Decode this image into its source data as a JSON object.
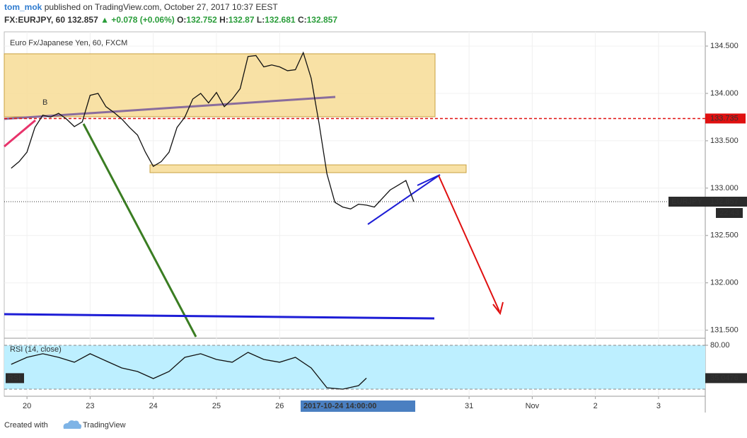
{
  "header": {
    "author": "tom_mok",
    "published": "published on TradingView.com, October 27, 2017 10:37 EEST",
    "symbol": "FX:EURJPY, 60",
    "change": "▲ +0.078 (+0.06%)",
    "ohlc": [
      {
        "label": "O:",
        "value": 132.752
      },
      {
        "label": "H:",
        "value": 132.87
      },
      {
        "label": "L:",
        "value": 132.681
      },
      {
        "label": "C:",
        "value": 132.857
      }
    ]
  },
  "chart_data": [
    {
      "type": "line",
      "title": "Euro Fx/Japanese Yen, 60, FXCM",
      "x": [
        -0.25,
        -0.125,
        0,
        0.125,
        0.25,
        0.375,
        0.5,
        0.625,
        0.75,
        0.875,
        1,
        1.125,
        1.25,
        1.375,
        1.5,
        1.625,
        1.75,
        1.875,
        2,
        2.125,
        2.25,
        2.375,
        2.5,
        2.625,
        2.75,
        2.875,
        3,
        3.125,
        3.25,
        3.375,
        3.5,
        3.625,
        3.75,
        3.875,
        4,
        4.125,
        4.25,
        4.375,
        4.5,
        4.625,
        4.75,
        4.875,
        5,
        5.125,
        5.25,
        5.375,
        5.5,
        5.625,
        5.75,
        5.875,
        6,
        6.125
      ],
      "series": [
        {
          "name": "EURJPY",
          "color": "#111111",
          "values": [
            133.21,
            133.28,
            133.38,
            133.64,
            133.77,
            133.75,
            133.79,
            133.73,
            133.65,
            133.7,
            133.98,
            134.0,
            133.86,
            133.8,
            133.73,
            133.64,
            133.56,
            133.38,
            133.23,
            133.28,
            133.38,
            133.64,
            133.75,
            133.94,
            134.0,
            133.9,
            134.01,
            133.86,
            133.94,
            134.05,
            134.39,
            134.4,
            134.28,
            134.3,
            134.28,
            134.24,
            134.25,
            134.43,
            134.16,
            133.68,
            133.15,
            132.85,
            132.8,
            132.78,
            132.83,
            132.82,
            132.8,
            132.89,
            132.98,
            133.03,
            133.08,
            132.857
          ]
        }
      ],
      "hline": {
        "value": 133.735,
        "color": "#e01010"
      },
      "countdown": "22:43",
      "annotation": "B",
      "crosshair_label": "2017-10-24 14:00:00",
      "xlim": [
        -0.36,
        10.74
      ],
      "ylim": [
        131.43,
        134.65
      ],
      "xticks": [
        {
          "value": 0,
          "label": "20"
        },
        {
          "value": 1,
          "label": "23"
        },
        {
          "value": 2,
          "label": "24"
        },
        {
          "value": 3,
          "label": "25"
        },
        {
          "value": 4,
          "label": "26"
        },
        {
          "value": 7,
          "label": "31"
        },
        {
          "value": 8,
          "label": "Nov"
        },
        {
          "value": 9,
          "label": "2"
        },
        {
          "value": 10,
          "label": "3"
        }
      ],
      "yticks": [
        {
          "value": 131.5,
          "label": "131.500"
        },
        {
          "value": 132,
          "label": "132.000"
        },
        {
          "value": 132.5,
          "label": "132.500"
        },
        {
          "value": 133,
          "label": "133.000"
        },
        {
          "value": 133.5,
          "label": "133.500"
        },
        {
          "value": 134,
          "label": "134.000"
        },
        {
          "value": 134.5,
          "label": "134.500"
        }
      ],
      "grid": true
    },
    {
      "type": "line",
      "title": "RSI (14, close)",
      "x": [
        -0.25,
        0,
        0.25,
        0.5,
        0.75,
        1,
        1.25,
        1.5,
        1.75,
        2,
        2.25,
        2.5,
        2.75,
        3,
        3.25,
        3.5,
        3.75,
        4,
        4.25,
        4.5,
        4.75,
        5,
        5.25,
        5.375
      ],
      "series": [
        {
          "name": "RSI",
          "color": "#111111",
          "values": [
            53.9,
            63.5,
            68.4,
            63.5,
            56.8,
            68.4,
            58.7,
            49,
            44.2,
            34.5,
            44.2,
            63.5,
            68.4,
            60.6,
            56.8,
            70.3,
            60.6,
            56.8,
            63.5,
            49,
            21.9,
            20,
            24.8,
            35.0476
          ]
        }
      ],
      "band": [
        20,
        80
      ],
      "band_color": "#bdefff",
      "xlim": [
        -0.36,
        10.74
      ],
      "ylim": [
        10.3,
        87.7
      ],
      "yticks": [
        {
          "value": 80,
          "label": "80.00"
        }
      ]
    }
  ],
  "footer": {
    "created": "Created with",
    "brand": "TradingView"
  }
}
